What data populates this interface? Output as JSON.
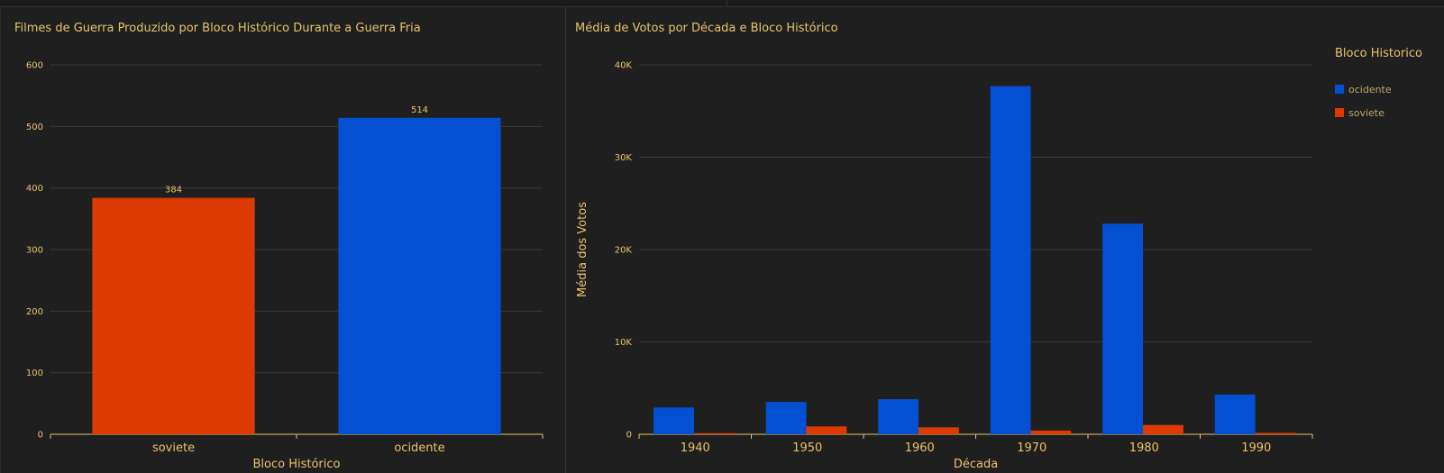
{
  "colors": {
    "ocidente": "#0350d2",
    "soviete": "#dd3a02",
    "text": "#e8c36a",
    "grid": "#3a3a3a",
    "axis": "#e8c36a"
  },
  "chart_data": [
    {
      "type": "bar",
      "title": "Filmes de Guerra Produzido por Bloco Histórico Durante a Guerra Fria",
      "xlabel": "Bloco Histórico",
      "ylabel": "",
      "categories": [
        "soviete",
        "ocidente"
      ],
      "values": [
        384,
        514
      ],
      "data_labels": [
        "384",
        "514"
      ],
      "bar_colors": [
        "soviete",
        "ocidente"
      ],
      "ylim": [
        0,
        600
      ],
      "yticks": [
        0,
        100,
        200,
        300,
        400,
        500,
        600
      ],
      "ytick_labels": [
        "0",
        "100",
        "200",
        "300",
        "400",
        "500",
        "600"
      ],
      "grid": true
    },
    {
      "type": "bar",
      "title": "Média de Votos por Década e Bloco Histórico",
      "xlabel": "Década",
      "ylabel": "Média dos Votos",
      "categories": [
        "1940",
        "1950",
        "1960",
        "1970",
        "1980",
        "1990"
      ],
      "series": [
        {
          "name": "ocidente",
          "values": [
            2900,
            3500,
            3800,
            37700,
            22800,
            4300
          ]
        },
        {
          "name": "soviete",
          "values": [
            120,
            850,
            750,
            400,
            1000,
            150
          ]
        }
      ],
      "ylim": [
        0,
        40000
      ],
      "yticks": [
        0,
        10000,
        20000,
        30000,
        40000
      ],
      "ytick_labels": [
        "0",
        "10K",
        "20K",
        "30K",
        "40K"
      ],
      "legend": {
        "title": "Bloco Historico",
        "placement": "top-right",
        "entries": [
          "ocidente",
          "soviete"
        ]
      },
      "grid": true
    }
  ]
}
